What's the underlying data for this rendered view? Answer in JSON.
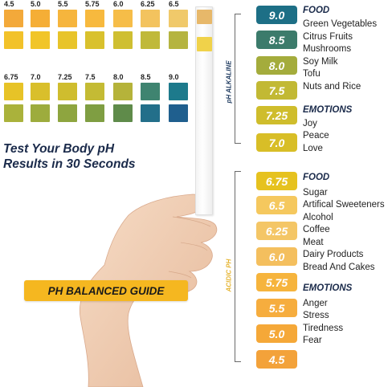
{
  "colors": {
    "alkaline_label": "#1e3a5f",
    "acidic_label": "#e5b431",
    "heading": "#1a2a4a",
    "guide_button": "#f5b720"
  },
  "chart": {
    "row1": [
      {
        "label": "4.5",
        "top": "#f3a93a",
        "bottom": "#f2c22a"
      },
      {
        "label": "5.0",
        "top": "#f5ae36",
        "bottom": "#f1c529"
      },
      {
        "label": "5.5",
        "top": "#f6b53d",
        "bottom": "#e8c42a"
      },
      {
        "label": "5.75",
        "top": "#f7b93e",
        "bottom": "#d9c12d"
      },
      {
        "label": "6.0",
        "top": "#f6bd48",
        "bottom": "#cfbf31"
      },
      {
        "label": "6.25",
        "top": "#f3c35e",
        "bottom": "#c0b93a"
      },
      {
        "label": "6.5",
        "top": "#f0c96a",
        "bottom": "#b5b440"
      }
    ],
    "row2": [
      {
        "label": "6.75",
        "top": "#e7c327",
        "bottom": "#aab23b"
      },
      {
        "label": "7.0",
        "top": "#d9bf2b",
        "bottom": "#9dac3d"
      },
      {
        "label": "7.25",
        "top": "#cfbd2e",
        "bottom": "#8ea53f"
      },
      {
        "label": "7.5",
        "top": "#c4bb34",
        "bottom": "#7f9e42"
      },
      {
        "label": "8.0",
        "top": "#b5b33a",
        "bottom": "#5f8b4a"
      },
      {
        "label": "8.5",
        "top": "#3f8470",
        "bottom": "#236f8a"
      },
      {
        "label": "9.0",
        "top": "#1d7a8c",
        "bottom": "#1f5f8e"
      }
    ]
  },
  "strip": {
    "pads": [
      "#e7b86a",
      "#f0d24a"
    ]
  },
  "tagline": {
    "line1": "Test Your Body pH",
    "line2": "Results in 30 Seconds"
  },
  "guide_button": {
    "label": "PH BALANCED GUIDE"
  },
  "scale": {
    "alkaline_label": "pH ALKALINE",
    "acidic_label": "ACIDIC PH",
    "levels": [
      {
        "value": "9.0",
        "color": "#1d6f86"
      },
      {
        "value": "8.5",
        "color": "#3c7b6b"
      },
      {
        "value": "8.0",
        "color": "#a4ac3c"
      },
      {
        "value": "7.5",
        "color": "#c2b934"
      },
      {
        "value": "7.25",
        "color": "#cfbd2c"
      },
      {
        "value": "7.0",
        "color": "#d8be27"
      },
      {
        "value": "6.75",
        "color": "#e6c21f"
      },
      {
        "value": "6.5",
        "color": "#f5c85e"
      },
      {
        "value": "6.25",
        "color": "#f4c666"
      },
      {
        "value": "6.0",
        "color": "#f4bf5e"
      },
      {
        "value": "5.75",
        "color": "#f6b43d"
      },
      {
        "value": "5.5",
        "color": "#f6ad3e"
      },
      {
        "value": "5.0",
        "color": "#f5a838"
      },
      {
        "value": "4.5",
        "color": "#f3a23a"
      }
    ],
    "alkaline_food_head": "FOOD",
    "alkaline_food": [
      "Green Vegetables",
      "Citrus Fruits",
      "Mushrooms",
      "Soy Milk",
      "Tofu",
      "Nuts and Rice"
    ],
    "alkaline_emotions_head": "EMOTIONS",
    "alkaline_emotions": [
      "Joy",
      "Peace",
      "Love"
    ],
    "acidic_food_head": "FOOD",
    "acidic_food": [
      "Sugar",
      "Artifical Sweeteners",
      "Alcohol",
      "Coffee",
      "Meat",
      "Dairy Products",
      "Bread And Cakes"
    ],
    "acidic_emotions_head": "EMOTIONS",
    "acidic_emotions": [
      "Anger",
      "Stress",
      "Tiredness",
      "Fear"
    ]
  }
}
